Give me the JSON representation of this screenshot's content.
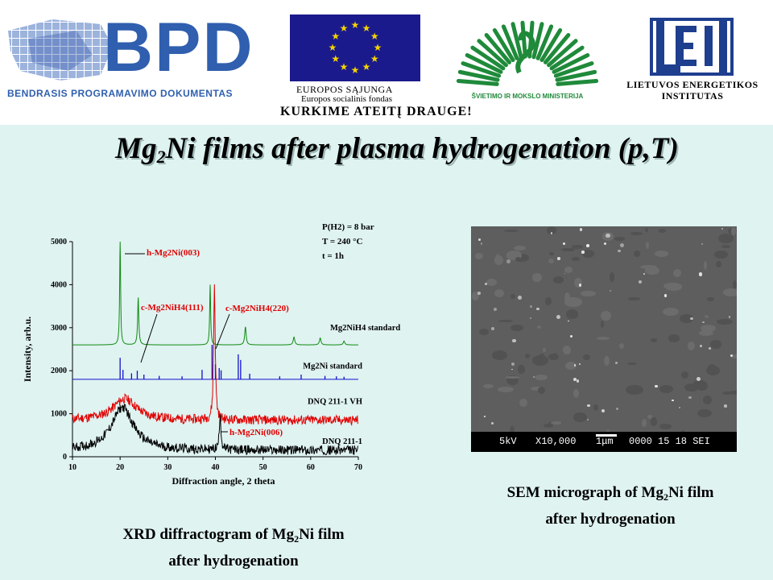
{
  "header": {
    "bpd_logo": {
      "text": "BPD",
      "subtitle": "BENDRASIS PROGRAMAVIMO DOKUMENTAS"
    },
    "eu_logo": {
      "line1": "EUROPOS SĄJUNGA",
      "line2": "Europos socialinis fondas"
    },
    "ministry_logo": {
      "text": "ŠVIETIMO IR MOKSLO MINISTERIJA"
    },
    "lei_logo": {
      "line1": "LIETUVOS ENERGETIKOS",
      "line2": "INSTITUTAS"
    },
    "slogan": "KURKIME ATEITĮ DRAUGE!"
  },
  "title": {
    "pre": "Mg",
    "sub": "2",
    "post": "Ni films after plasma hydrogenation (p,T)"
  },
  "xrd_caption": {
    "line1_pre": "XRD diffractogram of Mg",
    "line1_sub": "2",
    "line1_post": "Ni film",
    "line2": "after hydrogenation"
  },
  "sem_caption": {
    "line1_pre": "SEM micrograph of Mg",
    "line1_sub": "2",
    "line1_post": "Ni film",
    "line2": "after hydrogenation"
  },
  "sem_image": {
    "voltage": "5kV",
    "magnification": "X10,000",
    "scale": "1μm",
    "code": "0000 15 18 SEI"
  },
  "colors": {
    "green": "#118a11",
    "blue": "#1010cc",
    "red": "#e00000",
    "black": "#000000",
    "annotation": "#e00000",
    "background": "#dff3f1"
  },
  "chart_data": {
    "type": "line",
    "xlabel": "Diffraction angle, 2 theta",
    "ylabel": "Intensity, arb.u.",
    "xlim": [
      10,
      70
    ],
    "ylim": [
      0,
      5000
    ],
    "x_ticks": [
      10,
      20,
      30,
      40,
      50,
      60,
      70
    ],
    "y_ticks": [
      0,
      1000,
      2000,
      3000,
      4000,
      5000
    ],
    "conditions": [
      "P(H2) = 8 bar",
      "T = 240 °C",
      "t = 1h"
    ],
    "series": [
      {
        "name": "Mg2NiH4 standard",
        "color": "#118a11",
        "baseline": 2600,
        "peaks": [
          [
            20.0,
            5000,
            0.12
          ],
          [
            23.8,
            3700,
            0.15
          ],
          [
            38.9,
            4000,
            0.12
          ],
          [
            46.3,
            3020,
            0.18
          ],
          [
            56.5,
            2780,
            0.2
          ],
          [
            62.0,
            2760,
            0.2
          ],
          [
            67.0,
            2690,
            0.2
          ]
        ]
      },
      {
        "name": "Mg2Ni standard",
        "color": "#1010cc",
        "baseline": 1800,
        "sticks": [
          [
            20.0,
            2300
          ],
          [
            20.6,
            2020
          ],
          [
            22.4,
            1940
          ],
          [
            23.6,
            2000
          ],
          [
            25.0,
            1910
          ],
          [
            28.2,
            1880
          ],
          [
            33.0,
            1870
          ],
          [
            37.2,
            2020
          ],
          [
            39.3,
            2600
          ],
          [
            40.0,
            2150
          ],
          [
            40.8,
            2060
          ],
          [
            41.2,
            2010
          ],
          [
            44.8,
            2380
          ],
          [
            45.3,
            2250
          ],
          [
            47.2,
            1930
          ],
          [
            53.5,
            1870
          ],
          [
            58.0,
            1910
          ],
          [
            63.0,
            1880
          ],
          [
            65.4,
            1870
          ],
          [
            67.0,
            1860
          ]
        ]
      },
      {
        "name": "DNQ 211-1 VH",
        "color": "#e00000",
        "baseline": 850,
        "hump": [
          21.0,
          1350,
          3.0
        ],
        "peaks": [
          [
            39.8,
            4000,
            0.2
          ]
        ]
      },
      {
        "name": "DNQ 211-1",
        "color": "#000000",
        "baseline": 150,
        "hump": [
          20.5,
          1150,
          2.8
        ],
        "peaks": [
          [
            41.0,
            1000,
            0.2
          ]
        ]
      }
    ],
    "annotations": [
      {
        "text": "h-Mg2Ni(003)"
      },
      {
        "text": "c-Mg2NiH4(111)"
      },
      {
        "text": "c-Mg2NiH4(220)"
      },
      {
        "text": "h-Mg2Ni(006)"
      }
    ]
  }
}
